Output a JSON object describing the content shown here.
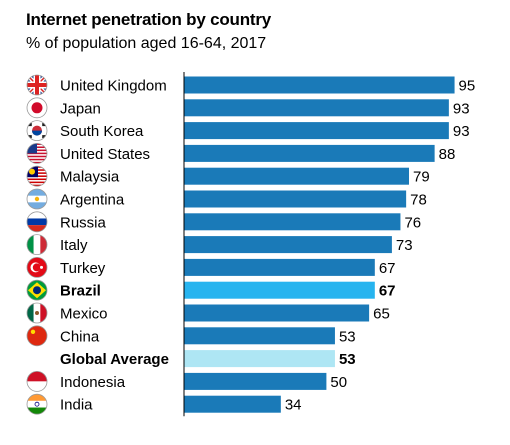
{
  "chart_data": {
    "type": "bar",
    "orientation": "horizontal",
    "title": "Internet penetration by country",
    "subtitle": "% of population aged 16-64, 2017",
    "xlim": [
      0,
      100
    ],
    "grid": false,
    "legend": "none",
    "colors": {
      "default": "#1a7ab8",
      "highlight": "#27b4ef",
      "average": "#aee6f4"
    },
    "items": [
      {
        "label": "United Kingdom",
        "value": 95,
        "flag": "uk-flag-icon",
        "style": "default"
      },
      {
        "label": "Japan",
        "value": 93,
        "flag": "japan-flag-icon",
        "style": "default"
      },
      {
        "label": "South Korea",
        "value": 93,
        "flag": "south-korea-flag-icon",
        "style": "default"
      },
      {
        "label": "United States",
        "value": 88,
        "flag": "us-flag-icon",
        "style": "default"
      },
      {
        "label": "Malaysia",
        "value": 79,
        "flag": "malaysia-flag-icon",
        "style": "default"
      },
      {
        "label": "Argentina",
        "value": 78,
        "flag": "argentina-flag-icon",
        "style": "default"
      },
      {
        "label": "Russia",
        "value": 76,
        "flag": "russia-flag-icon",
        "style": "default"
      },
      {
        "label": "Italy",
        "value": 73,
        "flag": "italy-flag-icon",
        "style": "default"
      },
      {
        "label": "Turkey",
        "value": 67,
        "flag": "turkey-flag-icon",
        "style": "default"
      },
      {
        "label": "Brazil",
        "value": 67,
        "flag": "brazil-flag-icon",
        "style": "highlight"
      },
      {
        "label": "Mexico",
        "value": 65,
        "flag": "mexico-flag-icon",
        "style": "default"
      },
      {
        "label": "China",
        "value": 53,
        "flag": "china-flag-icon",
        "style": "default"
      },
      {
        "label": "Global Average",
        "value": 53,
        "flag": "",
        "style": "average"
      },
      {
        "label": "Indonesia",
        "value": 50,
        "flag": "indonesia-flag-icon",
        "style": "default"
      },
      {
        "label": "India",
        "value": 34,
        "flag": "india-flag-icon",
        "style": "default"
      }
    ]
  }
}
